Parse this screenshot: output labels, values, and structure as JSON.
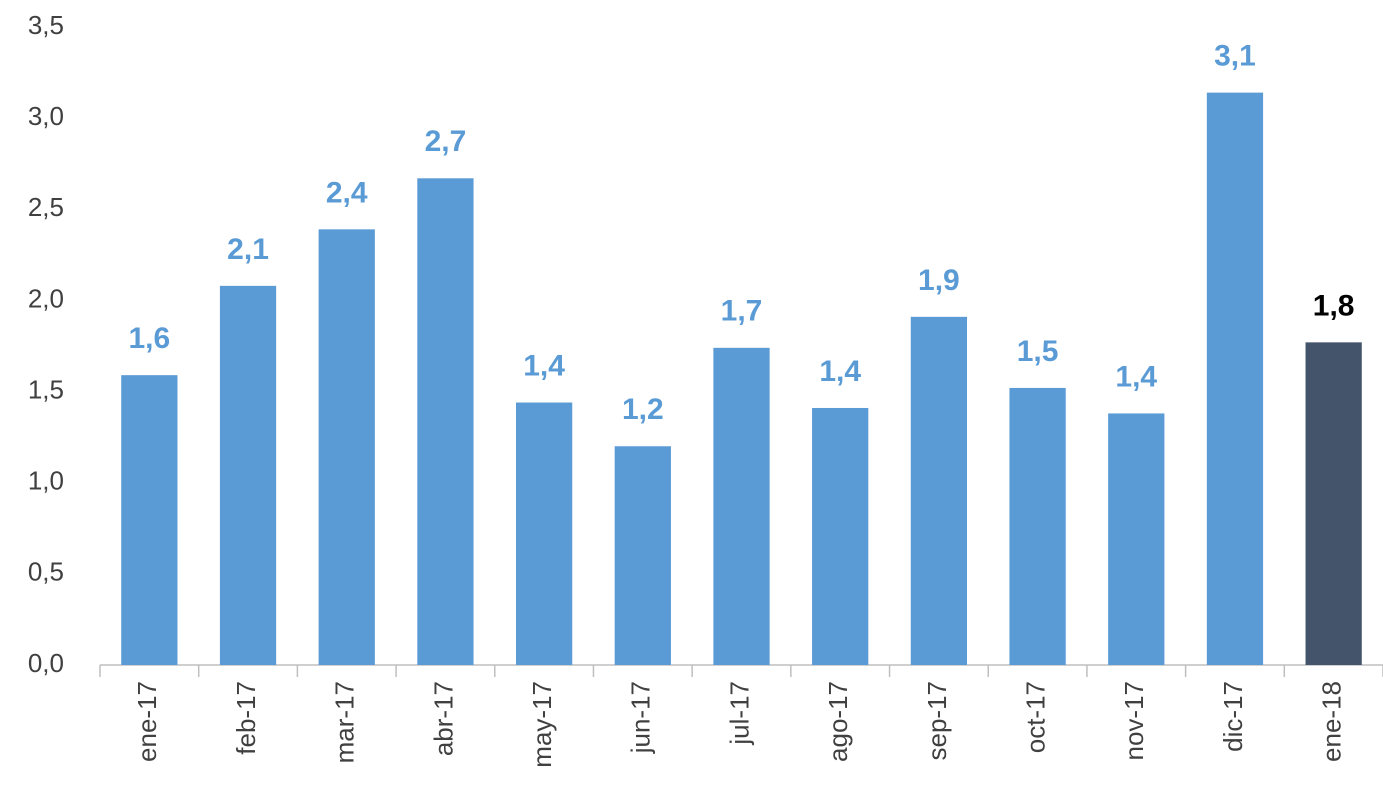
{
  "chart_data": {
    "type": "bar",
    "categories": [
      "ene-17",
      "feb-17",
      "mar-17",
      "abr-17",
      "may-17",
      "jun-17",
      "jul-17",
      "ago-17",
      "sep-17",
      "oct-17",
      "nov-17",
      "dic-17",
      "ene-18"
    ],
    "values": [
      1.59,
      2.08,
      2.39,
      2.67,
      1.44,
      1.2,
      1.74,
      1.41,
      1.91,
      1.52,
      1.38,
      3.14,
      1.77
    ],
    "value_labels": [
      "1,6",
      "2,1",
      "2,4",
      "2,7",
      "1,4",
      "1,2",
      "1,7",
      "1,4",
      "1,9",
      "1,5",
      "1,4",
      "3,1",
      "1,8"
    ],
    "colors": [
      "#5b9bd5",
      "#5b9bd5",
      "#5b9bd5",
      "#5b9bd5",
      "#5b9bd5",
      "#5b9bd5",
      "#5b9bd5",
      "#5b9bd5",
      "#5b9bd5",
      "#5b9bd5",
      "#5b9bd5",
      "#5b9bd5",
      "#44546a"
    ],
    "value_label_colors": [
      "#5b9bd5",
      "#5b9bd5",
      "#5b9bd5",
      "#5b9bd5",
      "#5b9bd5",
      "#5b9bd5",
      "#5b9bd5",
      "#5b9bd5",
      "#5b9bd5",
      "#5b9bd5",
      "#5b9bd5",
      "#5b9bd5",
      "#000000"
    ],
    "ylim": [
      0,
      3.5
    ],
    "yticks": [
      {
        "value": 0,
        "label": "0,0"
      },
      {
        "value": 0.5,
        "label": "0,5"
      },
      {
        "value": 1,
        "label": "1,0"
      },
      {
        "value": 1.5,
        "label": "1,5"
      },
      {
        "value": 2,
        "label": "2,0"
      },
      {
        "value": 2.5,
        "label": "2,5"
      },
      {
        "value": 3,
        "label": "3,0"
      },
      {
        "value": 3.5,
        "label": "3,5"
      }
    ],
    "grid": false
  }
}
